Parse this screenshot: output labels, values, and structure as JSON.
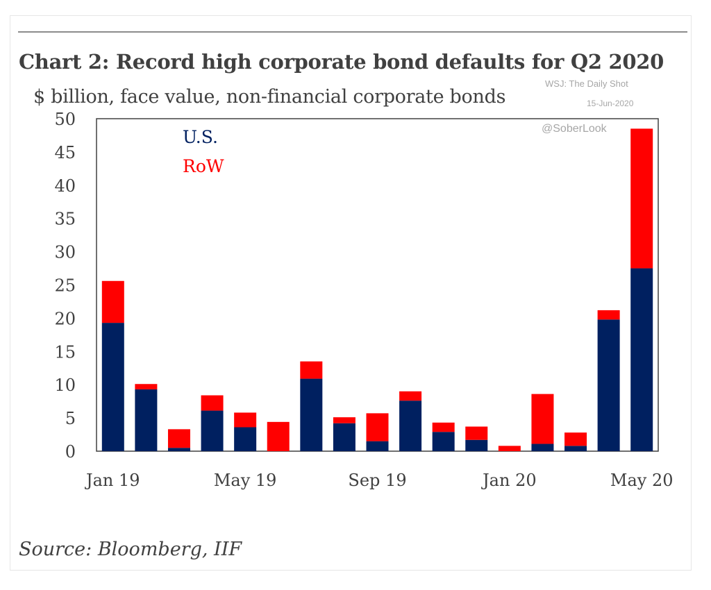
{
  "header": {
    "title": "Chart 2: Record high corporate bond defaults for Q2 2020",
    "subtitle": "$ billion, face value, non-financial corporate bonds"
  },
  "watermark": {
    "publisher": "WSJ: The Daily Shot",
    "date": "15-Jun-2020",
    "handle": "@SoberLook"
  },
  "footer": {
    "source": "Source:  Bloomberg, IIF"
  },
  "chart_data": {
    "type": "bar",
    "stacked": true,
    "title": "Chart 2: Record high corporate bond defaults for Q2 2020",
    "subtitle": "$ billion, face value, non-financial corporate bonds",
    "categories": [
      "Jan 19",
      "Feb 19",
      "Mar 19",
      "Apr 19",
      "May 19",
      "Jun 19",
      "Jul 19",
      "Aug 19",
      "Sep 19",
      "Oct 19",
      "Nov 19",
      "Dec 19",
      "Jan 20",
      "Feb 20",
      "Mar 20",
      "Apr 20",
      "May 20"
    ],
    "category_tick_labels": [
      "Jan 19",
      "",
      "",
      "",
      "May 19",
      "",
      "",
      "",
      "Sep 19",
      "",
      "",
      "",
      "Jan 20",
      "",
      "",
      "",
      "May 20"
    ],
    "series": [
      {
        "name": "U.S.",
        "color": "#002060",
        "values": [
          19.3,
          9.3,
          0.5,
          6.1,
          3.6,
          0,
          10.9,
          4.2,
          1.5,
          7.6,
          2.9,
          1.7,
          0,
          1.1,
          0.8,
          19.8,
          27.5
        ]
      },
      {
        "name": "RoW",
        "color": "#ff0000",
        "values": [
          6.3,
          0.8,
          2.8,
          2.3,
          2.2,
          4.4,
          2.6,
          0.9,
          4.2,
          1.4,
          1.4,
          2.0,
          0.8,
          7.5,
          2.0,
          1.4,
          21.0
        ]
      }
    ],
    "ylim": [
      0,
      50
    ],
    "yticks": [
      0,
      5,
      10,
      15,
      20,
      25,
      30,
      35,
      40,
      45,
      50
    ],
    "legend": "top-left",
    "grid": false
  }
}
